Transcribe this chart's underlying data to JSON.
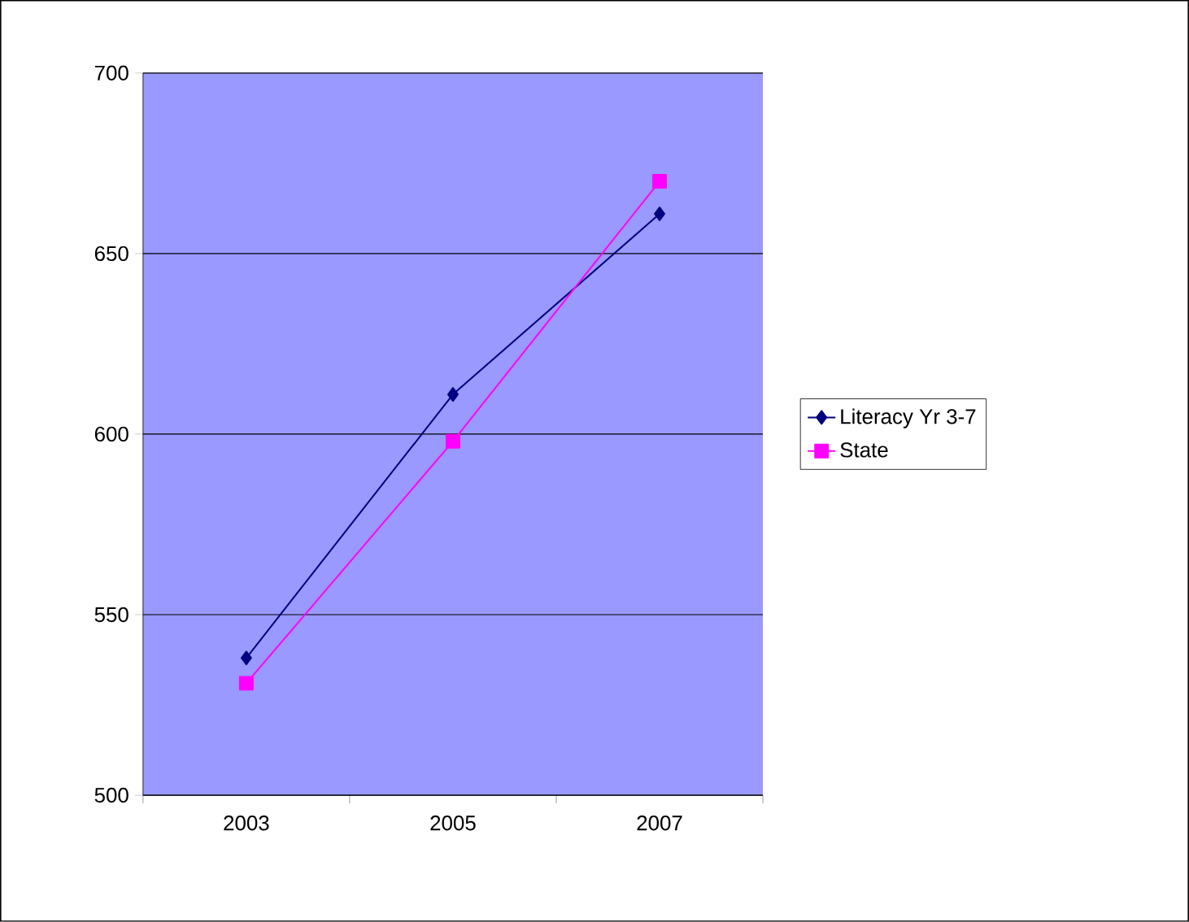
{
  "chart_data": {
    "type": "line",
    "categories": [
      "2003",
      "2005",
      "2007"
    ],
    "series": [
      {
        "name": "Literacy Yr 3-7",
        "color": "#000080",
        "marker": "diamond",
        "values": [
          538,
          611,
          661
        ]
      },
      {
        "name": "State",
        "color": "#ff00ff",
        "marker": "square",
        "values": [
          531,
          598,
          670
        ]
      }
    ],
    "ylim": [
      500,
      700
    ],
    "yticks": [
      500,
      550,
      600,
      650,
      700
    ],
    "grid": "y",
    "legend": "right",
    "line_style": "solid"
  }
}
